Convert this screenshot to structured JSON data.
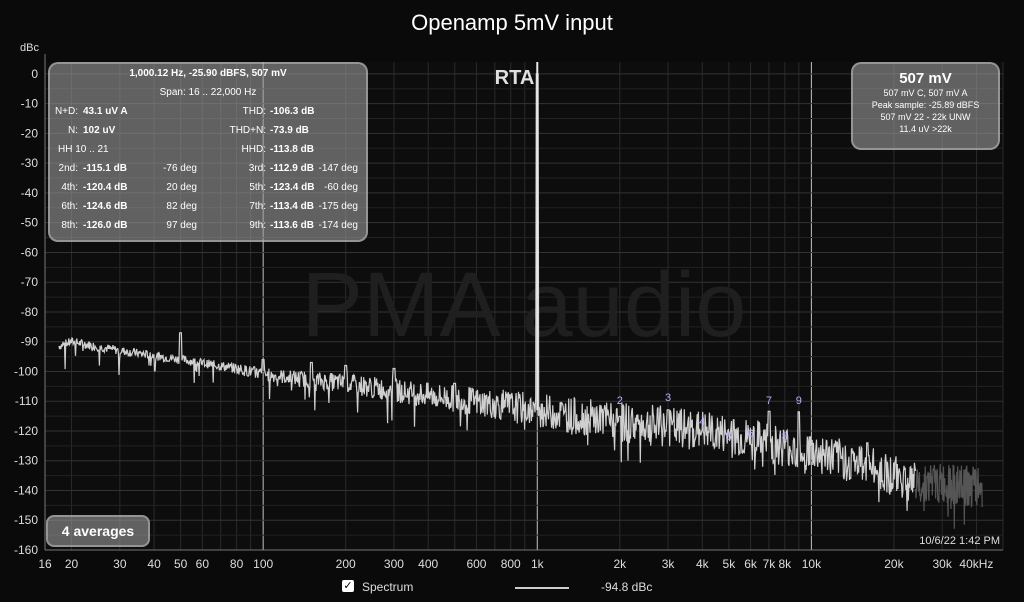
{
  "colors": {
    "background": "#0a0a0a",
    "spectrum": "#cfcfcf",
    "grid": "#2e2e2e",
    "marker": "#b0b0ff"
  },
  "chart_data": {
    "type": "line",
    "title": "Openamp 5mV input",
    "ylabel": "dBc",
    "xscale": "log",
    "xlim": [
      16,
      50000
    ],
    "ylim": [
      -160,
      4
    ],
    "x_tick_labels": [
      {
        "v": 16,
        "t": "16"
      },
      {
        "v": 20,
        "t": "20"
      },
      {
        "v": 30,
        "t": "30"
      },
      {
        "v": 40,
        "t": "40"
      },
      {
        "v": 50,
        "t": "50"
      },
      {
        "v": 60,
        "t": "60"
      },
      {
        "v": 80,
        "t": "80"
      },
      {
        "v": 100,
        "t": "100"
      },
      {
        "v": 200,
        "t": "200"
      },
      {
        "v": 300,
        "t": "300"
      },
      {
        "v": 400,
        "t": "400"
      },
      {
        "v": 600,
        "t": "600"
      },
      {
        "v": 800,
        "t": "800"
      },
      {
        "v": 1000,
        "t": "1k"
      },
      {
        "v": 2000,
        "t": "2k"
      },
      {
        "v": 3000,
        "t": "3k"
      },
      {
        "v": 4000,
        "t": "4k"
      },
      {
        "v": 5000,
        "t": "5k"
      },
      {
        "v": 6000,
        "t": "6k"
      },
      {
        "v": 7000,
        "t": "7k"
      },
      {
        "v": 8000,
        "t": "8k"
      },
      {
        "v": 10000,
        "t": "10k"
      },
      {
        "v": 20000,
        "t": "20k"
      },
      {
        "v": 30000,
        "t": "30k"
      },
      {
        "v": 40000,
        "t": "40kHz"
      }
    ],
    "y_ticks": [
      0,
      -10,
      -20,
      -30,
      -40,
      -50,
      -60,
      -70,
      -80,
      -90,
      -100,
      -110,
      -120,
      -130,
      -140,
      -150,
      -160
    ],
    "series": [
      {
        "name": "Spectrum",
        "noise_floor": [
          [
            16,
            -93
          ],
          [
            20,
            -90
          ],
          [
            30,
            -93
          ],
          [
            50,
            -96
          ],
          [
            80,
            -99
          ],
          [
            100,
            -101
          ],
          [
            200,
            -104
          ],
          [
            400,
            -108
          ],
          [
            700,
            -111
          ],
          [
            1000,
            -113
          ],
          [
            2000,
            -117
          ],
          [
            4000,
            -120
          ],
          [
            7000,
            -124
          ],
          [
            10000,
            -127
          ],
          [
            15000,
            -131
          ],
          [
            20000,
            -135
          ],
          [
            24000,
            -137
          ],
          [
            50000,
            -140
          ]
        ],
        "peaks": [
          [
            1000,
            0
          ],
          [
            50,
            -87
          ],
          [
            100,
            -96
          ],
          [
            150,
            -97
          ],
          [
            200,
            -98
          ],
          [
            300,
            -99
          ],
          [
            500,
            -104
          ],
          [
            2000,
            -115.1
          ],
          [
            3000,
            -112.9
          ],
          [
            4000,
            -120.4
          ],
          [
            5000,
            -123.4
          ],
          [
            6000,
            -124.6
          ],
          [
            7000,
            -113.4
          ],
          [
            8000,
            -126.0
          ],
          [
            9000,
            -113.6
          ],
          [
            10000,
            -125
          ],
          [
            16000,
            -124
          ]
        ]
      }
    ],
    "harmonic_markers": [
      {
        "label": "2",
        "f": 2000,
        "db": -111
      },
      {
        "label": "3",
        "f": 3000,
        "db": -110
      },
      {
        "label": "4",
        "f": 4000,
        "db": -118
      },
      {
        "label": "5",
        "f": 5000,
        "db": -123
      },
      {
        "label": "6",
        "f": 6000,
        "db": -122
      },
      {
        "label": "7",
        "f": 7000,
        "db": -111
      },
      {
        "label": "8",
        "f": 8000,
        "db": -123
      },
      {
        "label": "9",
        "f": 9000,
        "db": -111
      }
    ],
    "rta_label": "RTA",
    "watermark": "PMA audio"
  },
  "stats": {
    "header": "1,000.12 Hz, -25.90 dBFS, 507 mV",
    "span": "Span: 16 .. 22,000 Hz",
    "nd_label": "N+D:",
    "nd_value": "43.1 uV A",
    "thd_label": "THD:",
    "thd_value": "-106.3 dB",
    "n_label": "N:",
    "n_value": "102 uV",
    "thdn_label": "THD+N:",
    "thdn_value": "-73.9 dB",
    "hh_label": "HH 10 .. 21",
    "hhd_label": "HHD:",
    "hhd_value": "-113.8 dB",
    "harmonics": [
      {
        "l1": "2nd:",
        "v1": "-115.1 dB",
        "p1": "-76 deg",
        "l2": "3rd:",
        "v2": "-112.9 dB",
        "p2": "-147 deg"
      },
      {
        "l1": "4th:",
        "v1": "-120.4 dB",
        "p1": "20 deg",
        "l2": "5th:",
        "v2": "-123.4 dB",
        "p2": "-60 deg"
      },
      {
        "l1": "6th:",
        "v1": "-124.6 dB",
        "p1": "82 deg",
        "l2": "7th:",
        "v2": "-113.4 dB",
        "p2": "-175 deg"
      },
      {
        "l1": "8th:",
        "v1": "-126.0 dB",
        "p1": "97 deg",
        "l2": "9th:",
        "v2": "-113.6 dB",
        "p2": "-174 deg"
      }
    ]
  },
  "level_panel": {
    "main": "507 mV",
    "line1": "507 mV C, 507 mV A",
    "line2": "Peak sample: -25.89 dBFS",
    "line3": "507 mV 22 - 22k UNW",
    "line4": "11.4 uV >22k"
  },
  "averages": "4 averages",
  "timestamp": "10/6/22 1:42 PM",
  "legend": {
    "checked": "✓",
    "label": "Spectrum",
    "value": "-94.8 dBc"
  }
}
